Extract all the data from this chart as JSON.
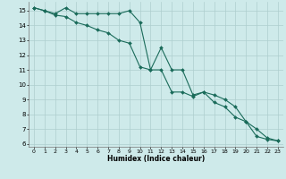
{
  "xlabel": "Humidex (Indice chaleur)",
  "bg_color": "#ceeaea",
  "grid_color": "#aecece",
  "line_color": "#1a6b5a",
  "line1_x": [
    0,
    1,
    2,
    3,
    4,
    5,
    6,
    7,
    8,
    9,
    10,
    11,
    12,
    13,
    14,
    15,
    16,
    17,
    18,
    19,
    20,
    21,
    22,
    23
  ],
  "line1_y": [
    15.2,
    15.0,
    14.8,
    15.2,
    14.8,
    14.8,
    14.8,
    14.8,
    14.8,
    15.0,
    14.2,
    11.0,
    11.0,
    9.5,
    9.5,
    9.2,
    9.5,
    9.3,
    9.0,
    8.5,
    7.5,
    6.5,
    6.3,
    6.2
  ],
  "line2_x": [
    0,
    1,
    2,
    3,
    4,
    5,
    6,
    7,
    8,
    9,
    10,
    11,
    12,
    13,
    14,
    15,
    16,
    17,
    18,
    19,
    20,
    21,
    22,
    23
  ],
  "line2_y": [
    15.2,
    15.0,
    14.7,
    14.6,
    14.2,
    14.0,
    13.7,
    13.5,
    13.0,
    12.8,
    11.2,
    11.0,
    12.5,
    11.0,
    11.0,
    9.3,
    9.5,
    8.8,
    8.5,
    7.8,
    7.5,
    7.0,
    6.4,
    6.2
  ],
  "xlim": [
    -0.5,
    23.5
  ],
  "ylim": [
    5.8,
    15.6
  ],
  "xticks": [
    0,
    1,
    2,
    3,
    4,
    5,
    6,
    7,
    8,
    9,
    10,
    11,
    12,
    13,
    14,
    15,
    16,
    17,
    18,
    19,
    20,
    21,
    22,
    23
  ],
  "yticks": [
    6,
    7,
    8,
    9,
    10,
    11,
    12,
    13,
    14,
    15
  ],
  "markersize": 2.0,
  "linewidth": 0.8
}
